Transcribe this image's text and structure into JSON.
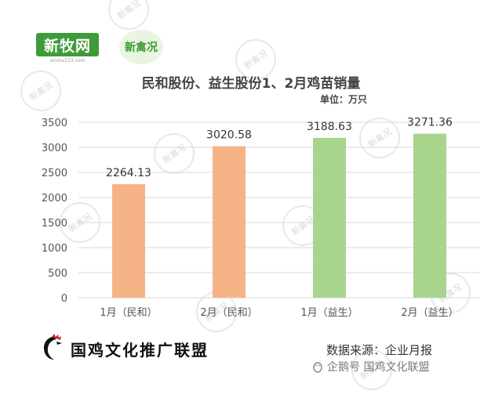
{
  "logos": {
    "left_logo_text": "新牧网",
    "left_logo_sub": "xinmu123.com",
    "right_logo_text": "新禽况",
    "watermark_text": "新禽况"
  },
  "chart_data": {
    "type": "bar",
    "title": "民和股份、益生股份1、2月鸡苗销量",
    "unit_label": "单位：万只",
    "categories": [
      "1月（民和）",
      "2月（民和）",
      "1月（益生）",
      "2月（益生）"
    ],
    "values": [
      2264.13,
      3020.58,
      3188.63,
      3271.36
    ],
    "value_labels": [
      "2264.13",
      "3020.58",
      "3188.63",
      "3271.36"
    ],
    "bar_colors": [
      "#f6b386",
      "#f6b386",
      "#a9d48e",
      "#a9d48e"
    ],
    "ylim": [
      0,
      3500
    ],
    "yticks": [
      "0",
      "500",
      "1000",
      "1500",
      "2000",
      "2500",
      "3000",
      "3500"
    ],
    "grid": true,
    "gridline_color": "#d9d9d9"
  },
  "footer": {
    "brand": "国鸡文化推广联盟",
    "source": "数据来源：企业月报",
    "wechat": "企鹅号 国鸡文化联盟"
  },
  "icons": {
    "brand_icon": "rooster-icon",
    "wechat_icon": "penguin-icon"
  }
}
